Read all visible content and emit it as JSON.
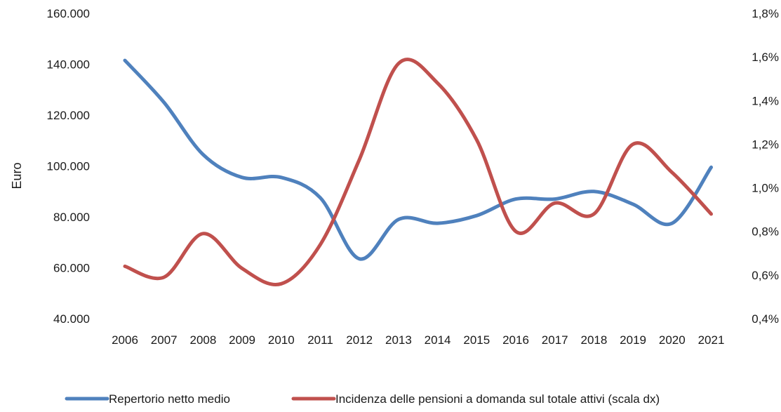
{
  "chart_data": {
    "type": "line",
    "categories": [
      "2006",
      "2007",
      "2008",
      "2009",
      "2010",
      "2011",
      "2012",
      "2013",
      "2014",
      "2015",
      "2016",
      "2017",
      "2018",
      "2019",
      "2020",
      "2021"
    ],
    "ylabel": "Euro",
    "ylim": [
      40000,
      160000
    ],
    "y_ticks": [
      "40.000",
      "60.000",
      "80.000",
      "100.000",
      "120.000",
      "140.000",
      "160.000"
    ],
    "y2lim": [
      0.4,
      1.8
    ],
    "y2_ticks": [
      "0,4%",
      "0,6%",
      "0,8%",
      "1,0%",
      "1,2%",
      "1,4%",
      "1,6%",
      "1,8%"
    ],
    "legend_position": "bottom",
    "grid": false,
    "series": [
      {
        "name": "Repertorio netto medio",
        "axis": "left",
        "color": "#4f81bd",
        "values": [
          141500,
          125000,
          104500,
          95500,
          95500,
          87500,
          63500,
          79000,
          77500,
          80500,
          87000,
          87000,
          90000,
          85000,
          77500,
          99500
        ]
      },
      {
        "name": "Incidenza delle pensioni a domanda sul totale attivi (scala dx)",
        "axis": "right",
        "color": "#c0504d",
        "values": [
          0.64,
          0.59,
          0.79,
          0.63,
          0.56,
          0.74,
          1.13,
          1.57,
          1.48,
          1.22,
          0.8,
          0.93,
          0.88,
          1.2,
          1.07,
          0.88
        ]
      }
    ]
  }
}
